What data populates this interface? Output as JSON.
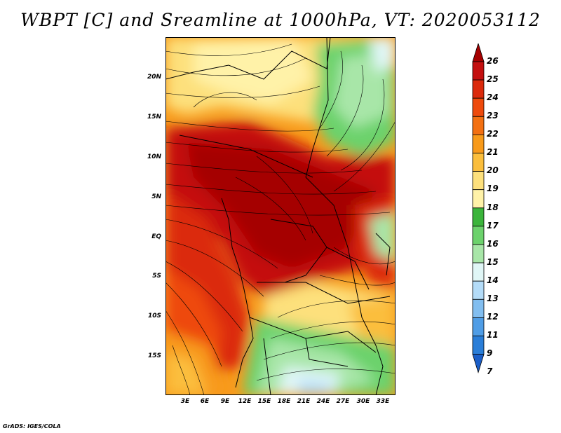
{
  "title": "WBPT [C] and Sreamline at 1000hPa, VT: 2020053112",
  "credit": "GrADS: IGES/COLA",
  "y_ticks": [
    "20N",
    "15N",
    "10N",
    "5N",
    "EQ",
    "5S",
    "10S",
    "15S"
  ],
  "x_ticks": [
    "3E",
    "6E",
    "9E",
    "12E",
    "15E",
    "18E",
    "21E",
    "24E",
    "27E",
    "30E",
    "33E"
  ],
  "colorbar": {
    "labels": [
      "26",
      "25",
      "24",
      "23",
      "22",
      "21",
      "20",
      "19",
      "18",
      "17",
      "16",
      "15",
      "14",
      "13",
      "12",
      "11",
      "9",
      "7"
    ],
    "colors": [
      "#a50000",
      "#c40f0f",
      "#db2a0c",
      "#ee4a0c",
      "#f37012",
      "#f89a1a",
      "#fbbe3c",
      "#fde07c",
      "#fff2a8",
      "#3bb43b",
      "#6cd26c",
      "#a8e6a8",
      "#e0f6f6",
      "#b4dcf8",
      "#82bef0",
      "#4f9de6",
      "#2a7ed8",
      "#1a5ec8"
    ]
  },
  "colors": {
    "land_coast": "#000000",
    "streamline": "#000000"
  }
}
